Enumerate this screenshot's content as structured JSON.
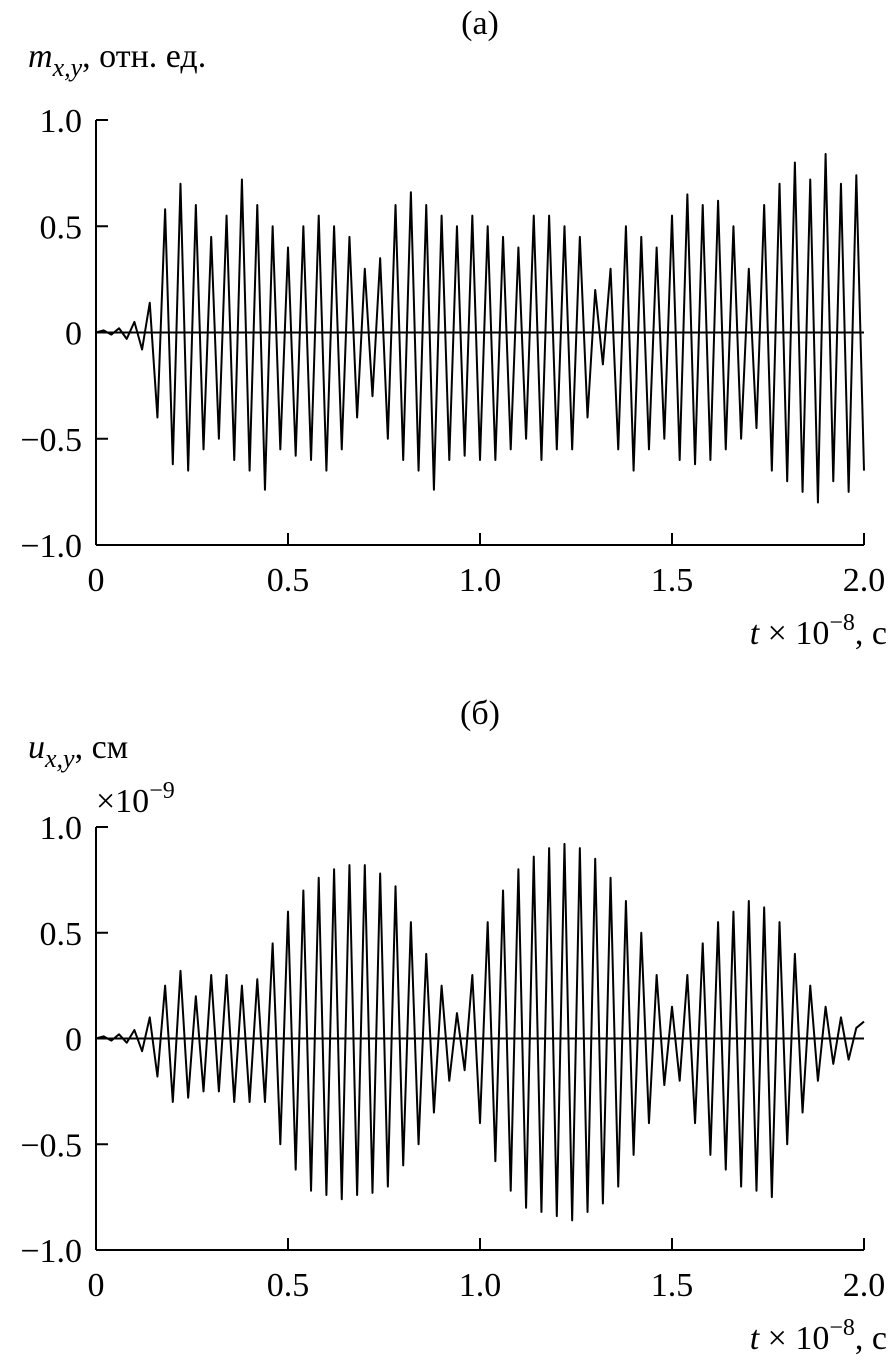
{
  "chart_data": [
    {
      "type": "line",
      "title": "(a)",
      "ylabel": {
        "symbol": "m",
        "subscript": "x,y",
        "unit": ", отн. ед."
      },
      "xlabel": {
        "symbol": "t",
        "factor": " × 10",
        "exponent": "−8",
        "unit": ", с"
      },
      "color": "#000000",
      "xlim": [
        0,
        2.0
      ],
      "xticks": [
        0,
        0.5,
        {
          "value": 1.0,
          "label": "1.0"
        },
        1.5,
        {
          "value": 2.0,
          "label": "2.0"
        }
      ],
      "ylim": [
        -1.0,
        1.0
      ],
      "yticks": [
        {
          "value": 1.0,
          "label": "1.0"
        },
        0.5,
        0,
        {
          "value": -0.5,
          "label": "−0.5"
        },
        {
          "value": -1.0,
          "label": "−1.0"
        }
      ],
      "x": [
        0,
        0.02,
        0.04,
        0.06,
        0.08,
        0.1,
        0.12,
        0.14,
        0.16,
        0.18,
        0.2,
        0.22,
        0.24,
        0.26,
        0.28,
        0.3,
        0.32,
        0.34,
        0.36,
        0.38,
        0.4,
        0.42,
        0.44,
        0.46,
        0.48,
        0.5,
        0.52,
        0.54,
        0.56,
        0.58,
        0.6,
        0.62,
        0.64,
        0.66,
        0.68,
        0.7,
        0.72,
        0.74,
        0.76,
        0.78,
        0.8,
        0.82,
        0.84,
        0.86,
        0.88,
        0.9,
        0.92,
        0.94,
        0.96,
        0.98,
        1.0,
        1.02,
        1.04,
        1.06,
        1.08,
        1.1,
        1.12,
        1.14,
        1.16,
        1.18,
        1.2,
        1.22,
        1.24,
        1.26,
        1.28,
        1.3,
        1.32,
        1.34,
        1.36,
        1.38,
        1.4,
        1.42,
        1.44,
        1.46,
        1.48,
        1.5,
        1.52,
        1.54,
        1.56,
        1.58,
        1.6,
        1.62,
        1.64,
        1.66,
        1.68,
        1.7,
        1.72,
        1.74,
        1.76,
        1.78,
        1.8,
        1.82,
        1.84,
        1.86,
        1.88,
        1.9,
        1.92,
        1.94,
        1.96,
        1.98,
        2.0
      ],
      "values": [
        0,
        0.01,
        -0.01,
        0.02,
        -0.03,
        0.05,
        -0.08,
        0.14,
        -0.4,
        0.58,
        -0.62,
        0.7,
        -0.65,
        0.6,
        -0.55,
        0.45,
        -0.5,
        0.55,
        -0.6,
        0.72,
        -0.65,
        0.6,
        -0.74,
        0.5,
        -0.55,
        0.4,
        -0.58,
        0.5,
        -0.6,
        0.55,
        -0.65,
        0.5,
        -0.55,
        0.45,
        -0.4,
        0.3,
        -0.3,
        0.35,
        -0.5,
        0.6,
        -0.6,
        0.66,
        -0.65,
        0.6,
        -0.74,
        0.55,
        -0.6,
        0.5,
        -0.58,
        0.55,
        -0.6,
        0.5,
        -0.6,
        0.45,
        -0.55,
        0.4,
        -0.5,
        0.55,
        -0.6,
        0.55,
        -0.55,
        0.5,
        -0.55,
        0.45,
        -0.4,
        0.2,
        -0.15,
        0.3,
        -0.55,
        0.5,
        -0.65,
        0.45,
        -0.55,
        0.4,
        -0.5,
        0.55,
        -0.6,
        0.65,
        -0.62,
        0.6,
        -0.6,
        0.62,
        -0.55,
        0.5,
        -0.5,
        0.3,
        -0.45,
        0.6,
        -0.65,
        0.7,
        -0.7,
        0.8,
        -0.75,
        0.72,
        -0.8,
        0.84,
        -0.7,
        0.7,
        -0.75,
        0.74,
        -0.65
      ]
    },
    {
      "type": "line",
      "title": "(б)",
      "ylabel": {
        "symbol": "u",
        "subscript": "x,y",
        "unit": ", см"
      },
      "scale": {
        "factor": "×10",
        "exponent": "−9"
      },
      "xlabel": {
        "symbol": "t",
        "factor": " × 10",
        "exponent": "−8",
        "unit": ", с"
      },
      "color": "#000000",
      "xlim": [
        0,
        2.0
      ],
      "xticks": [
        0,
        0.5,
        {
          "value": 1.0,
          "label": "1.0"
        },
        1.5,
        {
          "value": 2.0,
          "label": "2.0"
        }
      ],
      "ylim": [
        -1.0,
        1.0
      ],
      "yticks": [
        {
          "value": 1.0,
          "label": "1.0"
        },
        0.5,
        0,
        {
          "value": -0.5,
          "label": "−0.5"
        },
        {
          "value": -1.0,
          "label": "−1.0"
        }
      ],
      "x": [
        0,
        0.02,
        0.04,
        0.06,
        0.08,
        0.1,
        0.12,
        0.14,
        0.16,
        0.18,
        0.2,
        0.22,
        0.24,
        0.26,
        0.28,
        0.3,
        0.32,
        0.34,
        0.36,
        0.38,
        0.4,
        0.42,
        0.44,
        0.46,
        0.48,
        0.5,
        0.52,
        0.54,
        0.56,
        0.58,
        0.6,
        0.62,
        0.64,
        0.66,
        0.68,
        0.7,
        0.72,
        0.74,
        0.76,
        0.78,
        0.8,
        0.82,
        0.84,
        0.86,
        0.88,
        0.9,
        0.92,
        0.94,
        0.96,
        0.98,
        1.0,
        1.02,
        1.04,
        1.06,
        1.08,
        1.1,
        1.12,
        1.14,
        1.16,
        1.18,
        1.2,
        1.22,
        1.24,
        1.26,
        1.28,
        1.3,
        1.32,
        1.34,
        1.36,
        1.38,
        1.4,
        1.42,
        1.44,
        1.46,
        1.48,
        1.5,
        1.52,
        1.54,
        1.56,
        1.58,
        1.6,
        1.62,
        1.64,
        1.66,
        1.68,
        1.7,
        1.72,
        1.74,
        1.76,
        1.78,
        1.8,
        1.82,
        1.84,
        1.86,
        1.88,
        1.9,
        1.92,
        1.94,
        1.96,
        1.98,
        2.0
      ],
      "values": [
        0,
        0.01,
        -0.01,
        0.02,
        -0.02,
        0.04,
        -0.06,
        0.1,
        -0.18,
        0.25,
        -0.3,
        0.32,
        -0.28,
        0.2,
        -0.25,
        0.3,
        -0.25,
        0.3,
        -0.3,
        0.25,
        -0.3,
        0.28,
        -0.3,
        0.45,
        -0.5,
        0.6,
        -0.62,
        0.7,
        -0.72,
        0.76,
        -0.74,
        0.8,
        -0.76,
        0.82,
        -0.74,
        0.82,
        -0.73,
        0.78,
        -0.7,
        0.72,
        -0.6,
        0.55,
        -0.5,
        0.4,
        -0.35,
        0.25,
        -0.2,
        0.12,
        -0.15,
        0.3,
        -0.4,
        0.55,
        -0.58,
        0.7,
        -0.72,
        0.8,
        -0.8,
        0.86,
        -0.82,
        0.9,
        -0.84,
        0.92,
        -0.86,
        0.9,
        -0.82,
        0.85,
        -0.78,
        0.76,
        -0.7,
        0.65,
        -0.55,
        0.5,
        -0.4,
        0.3,
        -0.22,
        0.15,
        -0.2,
        0.3,
        -0.4,
        0.45,
        -0.55,
        0.55,
        -0.62,
        0.6,
        -0.7,
        0.65,
        -0.72,
        0.62,
        -0.75,
        0.55,
        -0.5,
        0.4,
        -0.35,
        0.25,
        -0.2,
        0.15,
        -0.12,
        0.1,
        -0.1,
        0.05,
        0.08
      ]
    }
  ]
}
